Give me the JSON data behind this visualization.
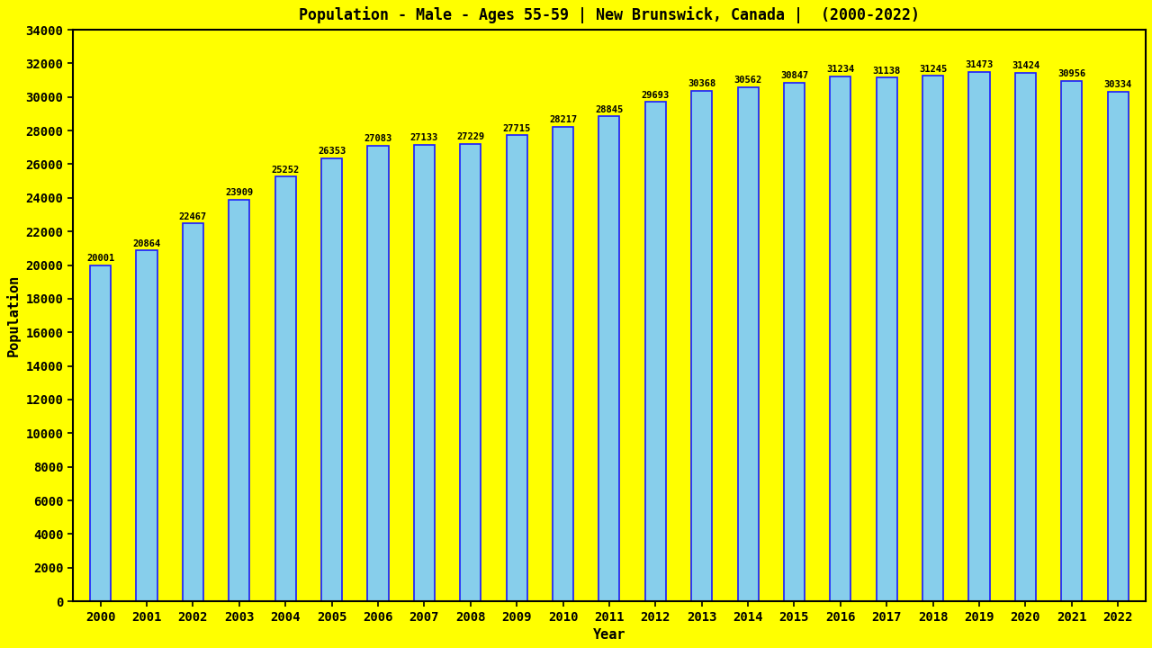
{
  "title": "Population - Male - Ages 55-59 | New Brunswick, Canada |  (2000-2022)",
  "xlabel": "Year",
  "ylabel": "Population",
  "background_color": "#FFFF00",
  "bar_color": "#87CEEB",
  "bar_edge_color": "#1a1aff",
  "years": [
    2000,
    2001,
    2002,
    2003,
    2004,
    2005,
    2006,
    2007,
    2008,
    2009,
    2010,
    2011,
    2012,
    2013,
    2014,
    2015,
    2016,
    2017,
    2018,
    2019,
    2020,
    2021,
    2022
  ],
  "values": [
    20001,
    20864,
    22467,
    23909,
    25252,
    26353,
    27083,
    27133,
    27229,
    27715,
    28217,
    28845,
    29693,
    30368,
    30562,
    30847,
    31234,
    31138,
    31245,
    31473,
    31424,
    30956,
    30334
  ],
  "ylim": [
    0,
    34000
  ],
  "yticks": [
    0,
    2000,
    4000,
    6000,
    8000,
    10000,
    12000,
    14000,
    16000,
    18000,
    20000,
    22000,
    24000,
    26000,
    28000,
    30000,
    32000,
    34000
  ],
  "title_fontsize": 12,
  "axis_label_fontsize": 11,
  "tick_fontsize": 10,
  "bar_label_fontsize": 7.5,
  "text_color": "#000000",
  "bar_width": 0.45
}
